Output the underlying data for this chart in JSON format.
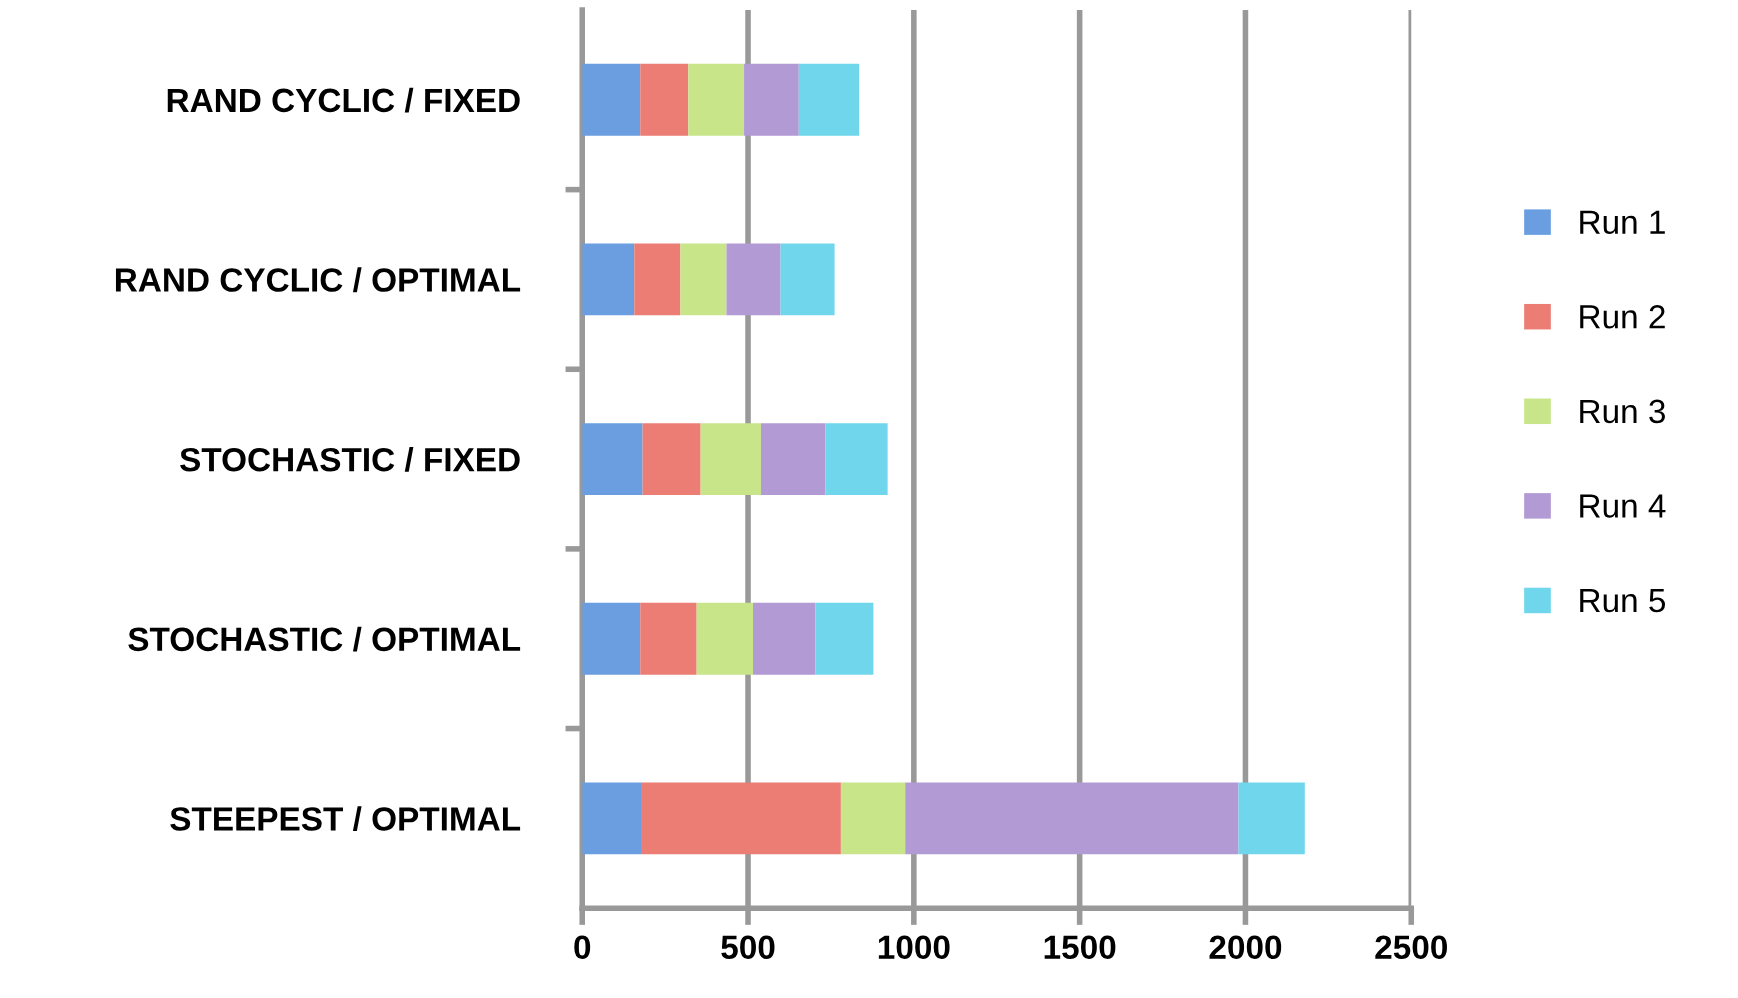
{
  "chart_data": {
    "type": "bar",
    "orientation": "horizontal",
    "stacked": true,
    "categories": [
      "RAND CYCLIC / FIXED",
      "RAND CYCLIC / OPTIMAL",
      "STOCHASTIC / FIXED",
      "STOCHASTIC / OPTIMAL",
      "STEEPEST / OPTIMAL"
    ],
    "series": [
      {
        "name": "Run 1",
        "color": "#6a9ee0",
        "values": [
          175,
          157,
          182,
          175,
          180
        ]
      },
      {
        "name": "Run 2",
        "color": "#ec7d74",
        "values": [
          145,
          139,
          175,
          170,
          600
        ]
      },
      {
        "name": "Run 3",
        "color": "#c8e58a",
        "values": [
          168,
          139,
          182,
          170,
          194
        ]
      },
      {
        "name": "Run 4",
        "color": "#b29ad4",
        "values": [
          165,
          163,
          194,
          188,
          1005
        ]
      },
      {
        "name": "Run 5",
        "color": "#6fd6ec",
        "values": [
          182,
          163,
          188,
          175,
          200
        ]
      }
    ],
    "xlim": [
      0,
      2500
    ],
    "xticks": [
      0,
      500,
      1000,
      1500,
      2000,
      2500
    ],
    "grid": "x",
    "legend": "right"
  }
}
